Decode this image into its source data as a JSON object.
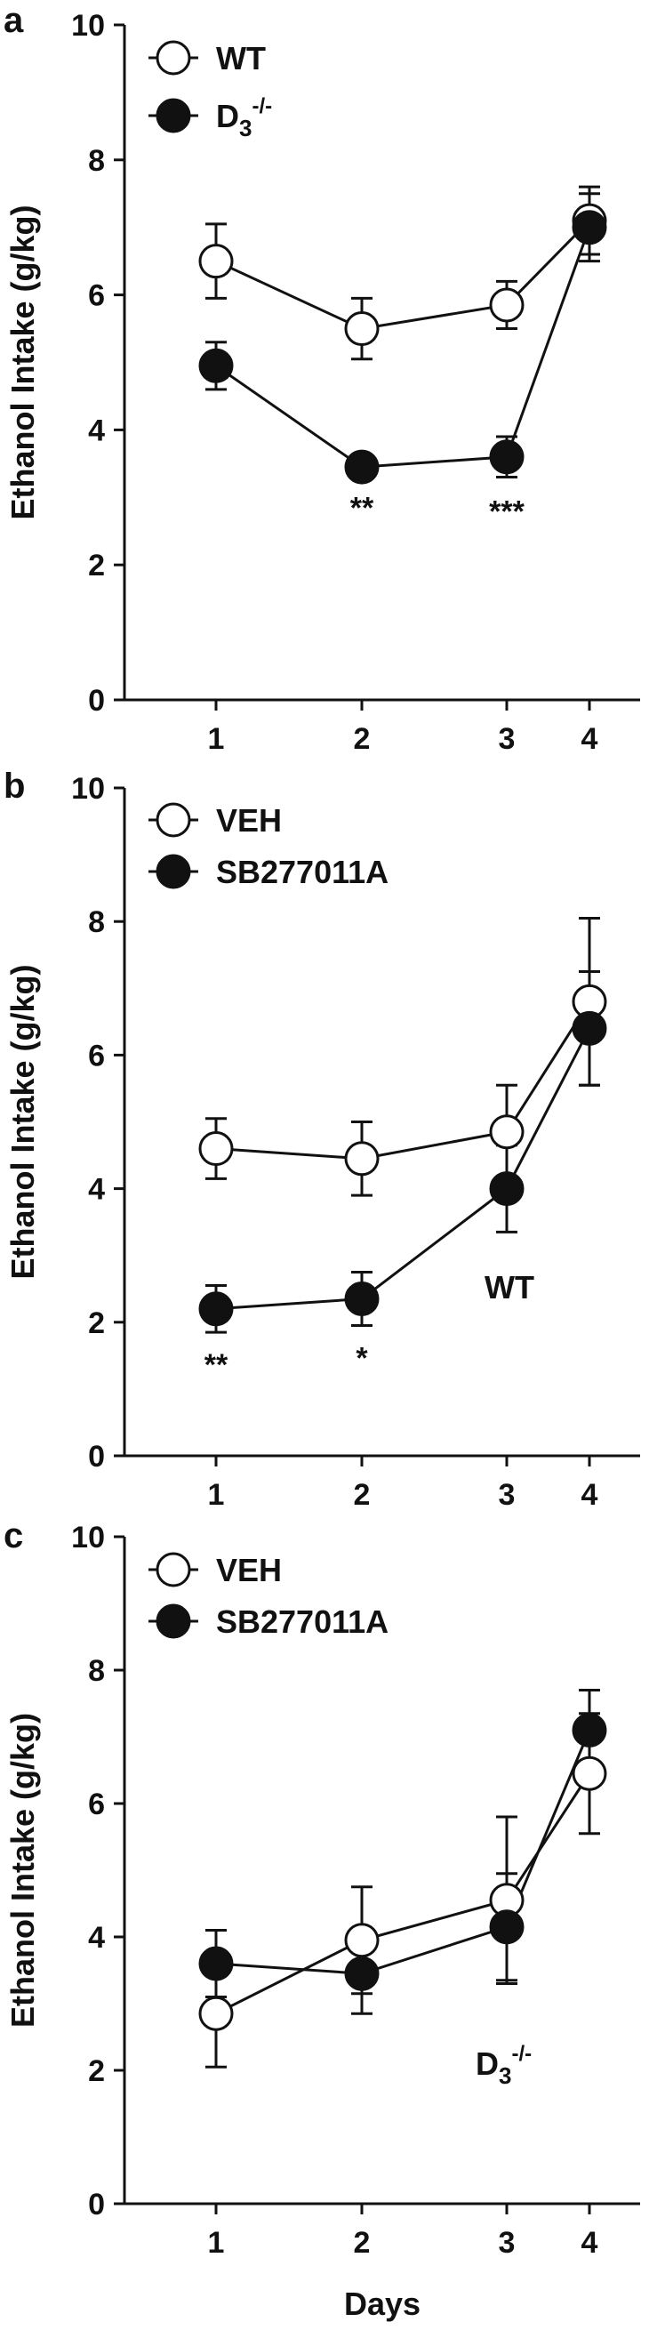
{
  "chart_data": [
    {
      "panel": "a",
      "type": "line",
      "categories": [
        "1",
        "2",
        "3",
        "4"
      ],
      "ylim": [
        0,
        10
      ],
      "yticks": [
        "0",
        "2",
        "4",
        "6",
        "8",
        "10"
      ],
      "ylabel": "Ethanol Intake (g/kg)",
      "xlabel": "",
      "legend_position": "top-left",
      "series": [
        {
          "name": "WT",
          "marker": "open-circle",
          "values": [
            6.5,
            5.5,
            5.85,
            7.1
          ],
          "errors": [
            0.55,
            0.45,
            0.35,
            0.5
          ]
        },
        {
          "name": "D3-/-",
          "name_base": "D",
          "name_sub": "3",
          "name_sup": "-/-",
          "marker": "filled-circle",
          "values": [
            4.95,
            3.45,
            3.6,
            7.0
          ],
          "errors": [
            0.35,
            0.1,
            0.3,
            0.5
          ]
        }
      ],
      "significance": [
        {
          "day": "2",
          "label": "**"
        },
        {
          "day": "3",
          "label": "***"
        }
      ],
      "annotation": {
        "base": "",
        "sub": "",
        "sup": ""
      }
    },
    {
      "panel": "b",
      "type": "line",
      "categories": [
        "1",
        "2",
        "3",
        "4"
      ],
      "ylim": [
        0,
        10
      ],
      "yticks": [
        "0",
        "2",
        "4",
        "6",
        "8",
        "10"
      ],
      "ylabel": "Ethanol Intake (g/kg)",
      "xlabel": "",
      "legend_position": "top-left",
      "series": [
        {
          "name": "VEH",
          "marker": "open-circle",
          "values": [
            4.6,
            4.45,
            4.85,
            6.8
          ],
          "errors": [
            0.45,
            0.55,
            0.7,
            1.25
          ]
        },
        {
          "name": "SB277011A",
          "marker": "filled-circle",
          "values": [
            2.2,
            2.35,
            4.0,
            6.4
          ],
          "errors": [
            0.35,
            0.4,
            0.65,
            0.85
          ]
        }
      ],
      "significance": [
        {
          "day": "1",
          "label": "**"
        },
        {
          "day": "2",
          "label": "*"
        }
      ],
      "annotation": {
        "base": "WT",
        "sub": "",
        "sup": ""
      }
    },
    {
      "panel": "c",
      "type": "line",
      "categories": [
        "1",
        "2",
        "3",
        "4"
      ],
      "ylim": [
        0,
        10
      ],
      "yticks": [
        "0",
        "2",
        "4",
        "6",
        "8",
        "10"
      ],
      "ylabel": "Ethanol Intake (g/kg)",
      "xlabel": "Days",
      "legend_position": "top-left",
      "series": [
        {
          "name": "VEH",
          "marker": "open-circle",
          "values": [
            2.85,
            3.95,
            4.55,
            6.45
          ],
          "errors": [
            0.8,
            0.8,
            1.25,
            0.9
          ]
        },
        {
          "name": "SB277011A",
          "marker": "filled-circle",
          "values": [
            3.6,
            3.45,
            4.15,
            7.1
          ],
          "errors": [
            0.5,
            0.6,
            0.8,
            0.6
          ]
        }
      ],
      "significance": [],
      "annotation": {
        "base": "D",
        "sub": "3",
        "sup": "-/-"
      }
    }
  ]
}
